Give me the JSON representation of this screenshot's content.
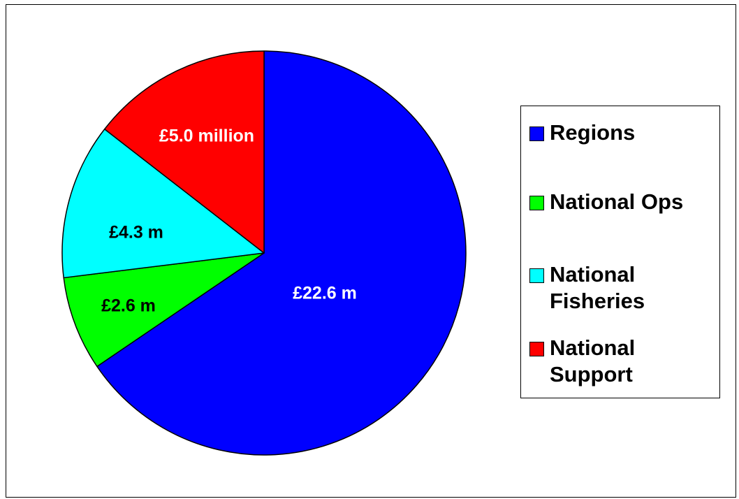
{
  "chart_data": {
    "type": "pie",
    "title": "",
    "start_angle_deg": 0,
    "direction": "clockwise",
    "legend_position": "right",
    "slices": [
      {
        "name": "Regions",
        "value": 22.6,
        "label": "£22.6 m",
        "color": "#0000FF",
        "label_color": "#FFFFFF"
      },
      {
        "name": "National Ops",
        "value": 2.6,
        "label": "£2.6 m",
        "color": "#00FF00",
        "label_color": "#000000"
      },
      {
        "name": "National Fisheries",
        "value": 4.3,
        "label": "£4.3 m",
        "color": "#00FFFF",
        "label_color": "#000000"
      },
      {
        "name": "National Support",
        "value": 5.0,
        "label": "£5.0 million",
        "color": "#FF0000",
        "label_color": "#FFFFFF"
      }
    ]
  },
  "legend": {
    "items": [
      {
        "label": "Regions",
        "color": "#0000FF"
      },
      {
        "label": "National Ops",
        "color": "#00FF00"
      },
      {
        "label": "National\nFisheries",
        "color": "#00FFFF"
      },
      {
        "label": "National\nSupport",
        "color": "#FF0000"
      }
    ]
  }
}
